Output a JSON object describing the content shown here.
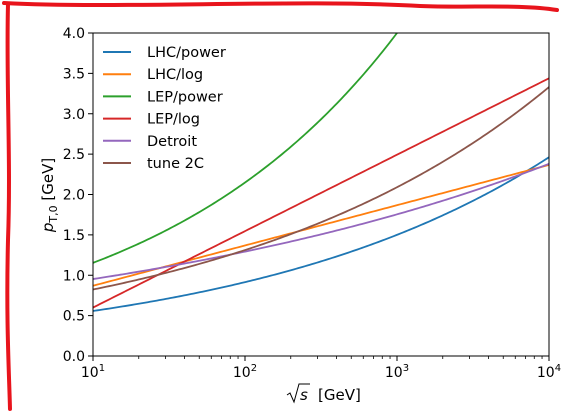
{
  "chart_data": {
    "type": "line",
    "title": "",
    "xlabel": {
      "main": "s",
      "unit": "[GeV]"
    },
    "ylabel": {
      "sym": "p",
      "sub": "T,0",
      "unit": "[GeV]"
    },
    "xscale": "log",
    "xlim": [
      10,
      10000
    ],
    "ylim": [
      0.0,
      4.0
    ],
    "x_ticks": [
      {
        "base": "10",
        "exp": "1"
      },
      {
        "base": "10",
        "exp": "2"
      },
      {
        "base": "10",
        "exp": "3"
      },
      {
        "base": "10",
        "exp": "4"
      }
    ],
    "y_ticks": [
      "0.0",
      "0.5",
      "1.0",
      "1.5",
      "2.0",
      "2.5",
      "3.0",
      "3.5",
      "4.0"
    ],
    "grid": false,
    "legend_placement": "top-left",
    "frame_color": "#e8141c",
    "series": [
      {
        "name": "LHC/power",
        "color": "#1f77b4",
        "model": "power",
        "ref": 7000,
        "p0": 2.28,
        "exp": 0.215
      },
      {
        "name": "LHC/log",
        "color": "#ff7f0e",
        "model": "log",
        "a": 0.87,
        "b": 0.2166
      },
      {
        "name": "LEP/power",
        "color": "#2ca02c",
        "model": "power",
        "ref": 1000,
        "p0": 4.0,
        "exp": 0.27
      },
      {
        "name": "LEP/log",
        "color": "#d62728",
        "model": "log",
        "a": 0.6,
        "b": 0.411
      },
      {
        "name": "Detroit",
        "color": "#9467bd",
        "model": "power",
        "ref": 10000,
        "p0": 2.38,
        "exp": 0.1325
      },
      {
        "name": "tune 2C",
        "color": "#8c564b",
        "model": "power",
        "ref": 10000,
        "p0": 3.33,
        "exp": 0.2023
      }
    ]
  }
}
